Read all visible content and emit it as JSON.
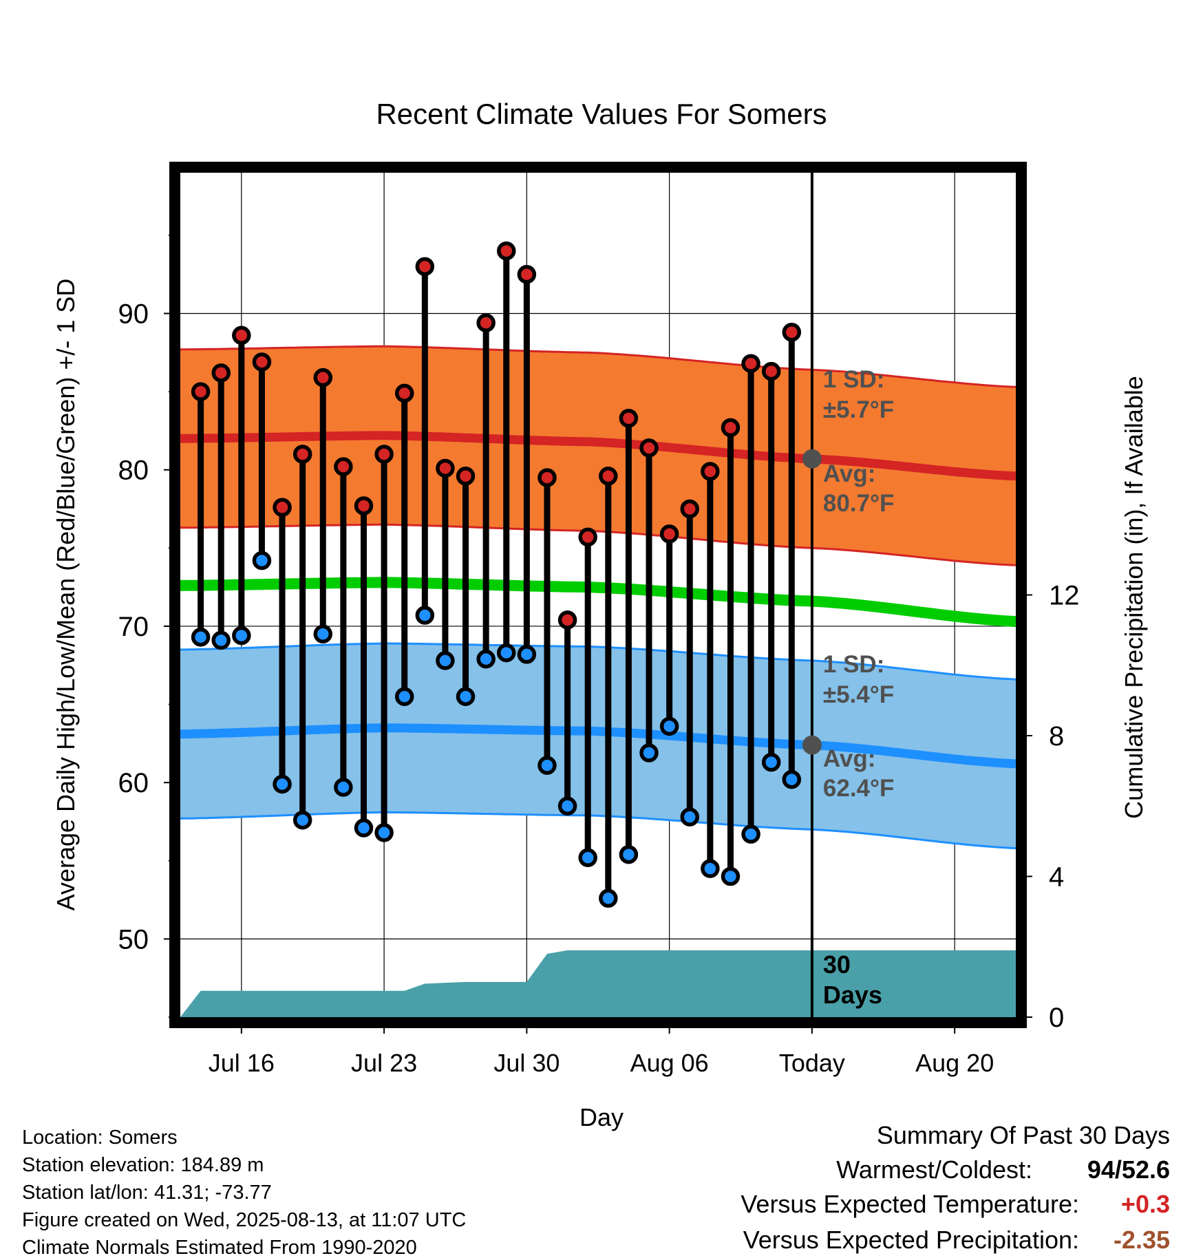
{
  "chart_data": {
    "type": "line",
    "title": "Recent Climate Values For Somers",
    "xlabel": "Day",
    "ylabel": "Average Daily High/Low/Mean (Red/Blue/Green) +/- 1 SD",
    "ylabel_right": "Cumulative Precipitation (in), If Available",
    "x_range": [
      "2025-07-13",
      "2025-08-23"
    ],
    "ylim": [
      45,
      99
    ],
    "ylim_right": [
      0,
      24
    ],
    "y_ticks": [
      50,
      60,
      70,
      80,
      90
    ],
    "y_right_ticks": [
      0,
      4,
      8,
      12
    ],
    "x_ticks": [
      {
        "date": "2025-07-16",
        "label": "Jul 16"
      },
      {
        "date": "2025-07-23",
        "label": "Jul 23"
      },
      {
        "date": "2025-07-30",
        "label": "Jul 30"
      },
      {
        "date": "2025-08-06",
        "label": "Aug 06"
      },
      {
        "date": "2025-08-13",
        "label": "Today"
      },
      {
        "date": "2025-08-20",
        "label": "Aug 20"
      }
    ],
    "grid": true,
    "today": "2025-08-13",
    "colors": {
      "high_band": "#f47a30",
      "high_mean": "#d42424",
      "low_band": "#85c1e9",
      "low_mean": "#1e8fff",
      "mean": "#00cc00",
      "precip": "#4aa0a8",
      "high_point": "#d42424",
      "low_point": "#1e8fff",
      "annotation": "#505050"
    },
    "normals": {
      "dates": [
        "2025-07-13",
        "2025-07-23",
        "2025-08-02",
        "2025-08-13",
        "2025-08-23"
      ],
      "high_mean": [
        82.0,
        82.2,
        81.8,
        80.7,
        79.6
      ],
      "low_mean": [
        63.1,
        63.5,
        63.3,
        62.4,
        61.2
      ],
      "mean": [
        72.6,
        72.8,
        72.5,
        71.6,
        70.3
      ],
      "high_sd": 5.7,
      "low_sd": 5.4
    },
    "daily": {
      "dates": [
        "2025-07-14",
        "2025-07-15",
        "2025-07-16",
        "2025-07-17",
        "2025-07-18",
        "2025-07-19",
        "2025-07-20",
        "2025-07-21",
        "2025-07-22",
        "2025-07-23",
        "2025-07-24",
        "2025-07-25",
        "2025-07-26",
        "2025-07-27",
        "2025-07-28",
        "2025-07-29",
        "2025-07-30",
        "2025-07-31",
        "2025-08-01",
        "2025-08-02",
        "2025-08-03",
        "2025-08-04",
        "2025-08-05",
        "2025-08-06",
        "2025-08-07",
        "2025-08-08",
        "2025-08-09",
        "2025-08-10",
        "2025-08-11",
        "2025-08-12"
      ],
      "high": [
        85.0,
        86.2,
        88.6,
        86.9,
        77.6,
        81.0,
        85.9,
        80.2,
        77.7,
        81.0,
        84.9,
        93.0,
        80.1,
        79.6,
        89.4,
        94.0,
        92.5,
        79.5,
        70.4,
        75.7,
        79.6,
        83.3,
        81.4,
        75.9,
        77.5,
        79.9,
        82.7,
        86.8,
        86.3,
        88.8
      ],
      "low": [
        69.3,
        69.1,
        69.4,
        74.2,
        59.9,
        57.6,
        69.5,
        59.7,
        57.1,
        56.8,
        65.5,
        70.7,
        67.8,
        65.5,
        67.9,
        68.3,
        68.2,
        61.1,
        58.5,
        55.2,
        52.6,
        55.4,
        61.9,
        63.6,
        57.8,
        54.5,
        54.0,
        56.7,
        61.3,
        60.2
      ]
    },
    "precip": {
      "dates": [
        "2025-07-13",
        "2025-07-14",
        "2025-07-24",
        "2025-07-25",
        "2025-07-27",
        "2025-07-30",
        "2025-07-31",
        "2025-08-01",
        "2025-08-23"
      ],
      "values": [
        0.0,
        0.75,
        0.75,
        0.95,
        1.0,
        1.0,
        1.8,
        1.9,
        1.9
      ]
    },
    "annotations": {
      "high_sd_label_1": "1 SD:",
      "high_sd_label_2": "±5.7°F",
      "high_avg_label_1": "Avg:",
      "high_avg_label_2": "80.7°F",
      "low_sd_label_1": "1 SD:",
      "low_sd_label_2": "±5.4°F",
      "low_avg_label_1": "Avg:",
      "low_avg_label_2": "62.4°F",
      "days_label_1": "30",
      "days_label_2": "Days"
    }
  },
  "footer": {
    "location": "Location: Somers",
    "elevation": "Station elevation: 184.89 m",
    "latlon": "Station lat/lon: 41.31; -73.77",
    "created": "Figure created on Wed, 2025-08-13, at 11:07 UTC",
    "normals": "Climate Normals Estimated From 1990-2020"
  },
  "summary": {
    "title": "Summary Of Past 30 Days",
    "warm_cold_label": "Warmest/Coldest:",
    "warm_value": "94",
    "slash": "/",
    "cold_value": "52.6",
    "temp_label": "Versus Expected Temperature:",
    "temp_value": "+0.3",
    "precip_label": "Versus Expected Precipitation:",
    "precip_value": "-2.35",
    "temp_color": "#d42424",
    "precip_color": "#a0522d"
  }
}
